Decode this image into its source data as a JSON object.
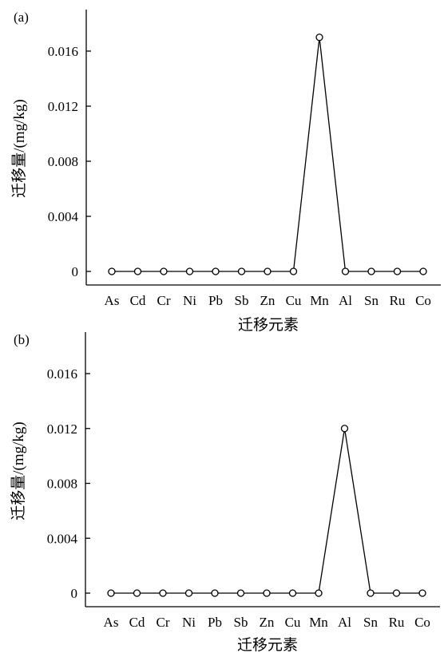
{
  "chart_data": [
    {
      "type": "line",
      "panel_label": "(a)",
      "categories": [
        "As",
        "Cd",
        "Cr",
        "Ni",
        "Pb",
        "Sb",
        "Zn",
        "Cu",
        "Mn",
        "Al",
        "Sn",
        "Ru",
        "Co"
      ],
      "series": [
        {
          "values": [
            0,
            0,
            0,
            0,
            0,
            0,
            0,
            0,
            0.017,
            0,
            0,
            0,
            0
          ]
        }
      ],
      "xlabel": "迁移元素",
      "ylabel": "迁移量/(mg/kg)",
      "ylim": [
        -0.0005,
        0.019
      ],
      "yticks": [
        0,
        0.004,
        0.008,
        0.012,
        0.016
      ],
      "ytick_labels": [
        "0",
        "0.004",
        "0.008",
        "0.012",
        "0.016"
      ],
      "marker": "open-circle",
      "grid": false,
      "line_color": "#000000"
    },
    {
      "type": "line",
      "panel_label": "(b)",
      "categories": [
        "As",
        "Cd",
        "Cr",
        "Ni",
        "Pb",
        "Sb",
        "Zn",
        "Cu",
        "Mn",
        "Al",
        "Sn",
        "Ru",
        "Co"
      ],
      "series": [
        {
          "values": [
            0,
            0,
            0,
            0,
            0,
            0,
            0,
            0,
            0,
            0.012,
            0,
            0,
            0
          ]
        }
      ],
      "xlabel": "迁移元素",
      "ylabel": "迁移量/(mg/kg)",
      "ylim": [
        -0.0005,
        0.019
      ],
      "yticks": [
        0,
        0.004,
        0.008,
        0.012,
        0.016
      ],
      "ytick_labels": [
        "0",
        "0.004",
        "0.008",
        "0.012",
        "0.016"
      ],
      "marker": "open-circle",
      "grid": false,
      "line_color": "#000000"
    }
  ]
}
